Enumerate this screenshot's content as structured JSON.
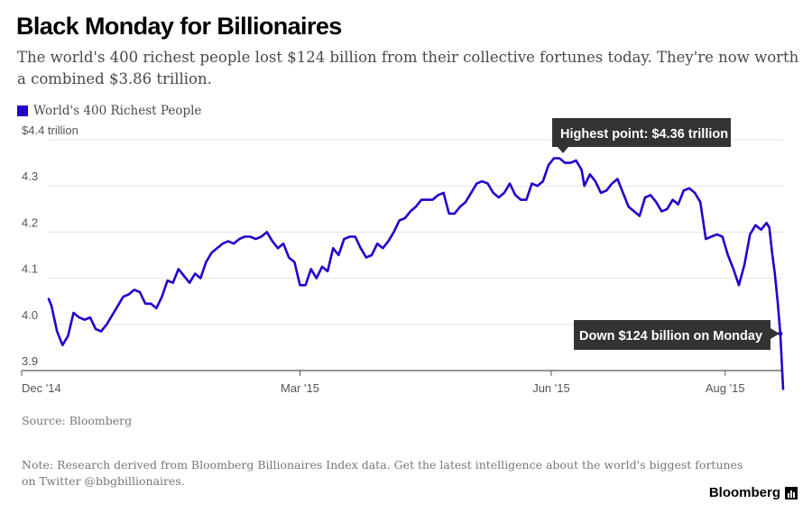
{
  "title": "Black Monday for Billionaires",
  "subtitle": "The world's 400 richest people lost $124 billion from their collective fortunes today. They're now worth a combined $3.86 trillion.",
  "source": "Source: Bloomberg",
  "note": "Note: Research derived from Bloomberg Billionaires Index data. Get the latest intelligence about the world's biggest fortunes on Twitter @bbgbillionaires.",
  "brand": "Bloomberg",
  "chart_data": {
    "type": "line",
    "title": "Black Monday for Billionaires",
    "xlabel": "",
    "ylabel": "",
    "x_range": [
      "2014-12-01",
      "2015-08-24"
    ],
    "ylim": [
      3.9,
      4.4
    ],
    "yticks": [
      3.9,
      4.0,
      4.1,
      4.2,
      4.3,
      4.4
    ],
    "ytick_labels": [
      "3.9",
      "4.0",
      "4.1",
      "4.2",
      "4.3",
      "$4.4 trillion"
    ],
    "xticks": [
      {
        "date": "2014-12-01",
        "label": "Dec '14"
      },
      {
        "date": "2015-03-02",
        "label": "Mar '15"
      },
      {
        "date": "2015-06-01",
        "label": "Jun '15"
      },
      {
        "date": "2015-08-03",
        "label": "Aug '15"
      }
    ],
    "grid": true,
    "legend_position": "top-left",
    "series": [
      {
        "name": "World's 400 Richest People",
        "color": "#2200cc",
        "points": [
          [
            "2014-12-01",
            4.055
          ],
          [
            "2014-12-02",
            4.04
          ],
          [
            "2014-12-04",
            3.985
          ],
          [
            "2014-12-06",
            3.955
          ],
          [
            "2014-12-08",
            3.975
          ],
          [
            "2014-12-10",
            4.025
          ],
          [
            "2014-12-12",
            4.015
          ],
          [
            "2014-12-14",
            4.01
          ],
          [
            "2014-12-16",
            4.015
          ],
          [
            "2014-12-18",
            3.99
          ],
          [
            "2014-12-20",
            3.985
          ],
          [
            "2014-12-22",
            4.0
          ],
          [
            "2014-12-24",
            4.02
          ],
          [
            "2014-12-26",
            4.04
          ],
          [
            "2014-12-28",
            4.06
          ],
          [
            "2014-12-30",
            4.065
          ],
          [
            "2015-01-01",
            4.075
          ],
          [
            "2015-01-03",
            4.07
          ],
          [
            "2015-01-05",
            4.045
          ],
          [
            "2015-01-07",
            4.045
          ],
          [
            "2015-01-09",
            4.035
          ],
          [
            "2015-01-11",
            4.06
          ],
          [
            "2015-01-13",
            4.095
          ],
          [
            "2015-01-15",
            4.09
          ],
          [
            "2015-01-17",
            4.12
          ],
          [
            "2015-01-19",
            4.105
          ],
          [
            "2015-01-21",
            4.09
          ],
          [
            "2015-01-23",
            4.11
          ],
          [
            "2015-01-25",
            4.1
          ],
          [
            "2015-01-27",
            4.135
          ],
          [
            "2015-01-29",
            4.155
          ],
          [
            "2015-01-31",
            4.165
          ],
          [
            "2015-02-02",
            4.175
          ],
          [
            "2015-02-04",
            4.18
          ],
          [
            "2015-02-06",
            4.175
          ],
          [
            "2015-02-08",
            4.185
          ],
          [
            "2015-02-10",
            4.19
          ],
          [
            "2015-02-12",
            4.19
          ],
          [
            "2015-02-14",
            4.185
          ],
          [
            "2015-02-16",
            4.19
          ],
          [
            "2015-02-18",
            4.2
          ],
          [
            "2015-02-20",
            4.18
          ],
          [
            "2015-02-22",
            4.165
          ],
          [
            "2015-02-24",
            4.175
          ],
          [
            "2015-02-26",
            4.145
          ],
          [
            "2015-02-28",
            4.135
          ],
          [
            "2015-03-02",
            4.085
          ],
          [
            "2015-03-04",
            4.085
          ],
          [
            "2015-03-06",
            4.12
          ],
          [
            "2015-03-08",
            4.1
          ],
          [
            "2015-03-10",
            4.125
          ],
          [
            "2015-03-12",
            4.115
          ],
          [
            "2015-03-14",
            4.165
          ],
          [
            "2015-03-16",
            4.15
          ],
          [
            "2015-03-18",
            4.185
          ],
          [
            "2015-03-20",
            4.19
          ],
          [
            "2015-03-22",
            4.19
          ],
          [
            "2015-03-24",
            4.165
          ],
          [
            "2015-03-26",
            4.145
          ],
          [
            "2015-03-28",
            4.15
          ],
          [
            "2015-03-30",
            4.175
          ],
          [
            "2015-04-01",
            4.165
          ],
          [
            "2015-04-03",
            4.18
          ],
          [
            "2015-04-05",
            4.2
          ],
          [
            "2015-04-07",
            4.225
          ],
          [
            "2015-04-09",
            4.23
          ],
          [
            "2015-04-11",
            4.245
          ],
          [
            "2015-04-13",
            4.255
          ],
          [
            "2015-04-15",
            4.27
          ],
          [
            "2015-04-17",
            4.27
          ],
          [
            "2015-04-19",
            4.27
          ],
          [
            "2015-04-21",
            4.28
          ],
          [
            "2015-04-23",
            4.285
          ],
          [
            "2015-04-25",
            4.24
          ],
          [
            "2015-04-27",
            4.24
          ],
          [
            "2015-04-29",
            4.255
          ],
          [
            "2015-05-01",
            4.265
          ],
          [
            "2015-05-03",
            4.285
          ],
          [
            "2015-05-05",
            4.305
          ],
          [
            "2015-05-07",
            4.31
          ],
          [
            "2015-05-09",
            4.305
          ],
          [
            "2015-05-11",
            4.285
          ],
          [
            "2015-05-13",
            4.275
          ],
          [
            "2015-05-15",
            4.285
          ],
          [
            "2015-05-17",
            4.305
          ],
          [
            "2015-05-19",
            4.28
          ],
          [
            "2015-05-21",
            4.27
          ],
          [
            "2015-05-23",
            4.27
          ],
          [
            "2015-05-25",
            4.305
          ],
          [
            "2015-05-27",
            4.3
          ],
          [
            "2015-05-29",
            4.31
          ],
          [
            "2015-05-31",
            4.345
          ],
          [
            "2015-06-02",
            4.36
          ],
          [
            "2015-06-04",
            4.36
          ],
          [
            "2015-06-06",
            4.35
          ],
          [
            "2015-06-08",
            4.35
          ],
          [
            "2015-06-10",
            4.355
          ],
          [
            "2015-06-12",
            4.335
          ],
          [
            "2015-06-13",
            4.3
          ],
          [
            "2015-06-15",
            4.325
          ],
          [
            "2015-06-17",
            4.31
          ],
          [
            "2015-06-19",
            4.285
          ],
          [
            "2015-06-21",
            4.29
          ],
          [
            "2015-06-23",
            4.305
          ],
          [
            "2015-06-25",
            4.315
          ],
          [
            "2015-06-27",
            4.285
          ],
          [
            "2015-06-29",
            4.255
          ],
          [
            "2015-07-01",
            4.245
          ],
          [
            "2015-07-03",
            4.235
          ],
          [
            "2015-07-05",
            4.275
          ],
          [
            "2015-07-07",
            4.28
          ],
          [
            "2015-07-09",
            4.265
          ],
          [
            "2015-07-11",
            4.245
          ],
          [
            "2015-07-13",
            4.25
          ],
          [
            "2015-07-15",
            4.27
          ],
          [
            "2015-07-17",
            4.26
          ],
          [
            "2015-07-19",
            4.29
          ],
          [
            "2015-07-21",
            4.295
          ],
          [
            "2015-07-23",
            4.285
          ],
          [
            "2015-07-25",
            4.265
          ],
          [
            "2015-07-27",
            4.185
          ],
          [
            "2015-07-29",
            4.19
          ],
          [
            "2015-07-31",
            4.195
          ],
          [
            "2015-08-02",
            4.19
          ],
          [
            "2015-08-04",
            4.15
          ],
          [
            "2015-08-06",
            4.12
          ],
          [
            "2015-08-08",
            4.085
          ],
          [
            "2015-08-10",
            4.13
          ],
          [
            "2015-08-12",
            4.195
          ],
          [
            "2015-08-14",
            4.215
          ],
          [
            "2015-08-16",
            4.205
          ],
          [
            "2015-08-18",
            4.22
          ],
          [
            "2015-08-19",
            4.21
          ],
          [
            "2015-08-20",
            4.155
          ],
          [
            "2015-08-21",
            4.11
          ],
          [
            "2015-08-22",
            4.05
          ],
          [
            "2015-08-23",
            3.98
          ],
          [
            "2015-08-24",
            3.86
          ]
        ]
      }
    ],
    "annotations": [
      {
        "text": "Highest point: $4.36 trillion",
        "x": "2015-06-02",
        "y": 4.36
      },
      {
        "text": "Down $124 billion on Monday",
        "x": "2015-08-23",
        "y": 3.98
      }
    ]
  }
}
